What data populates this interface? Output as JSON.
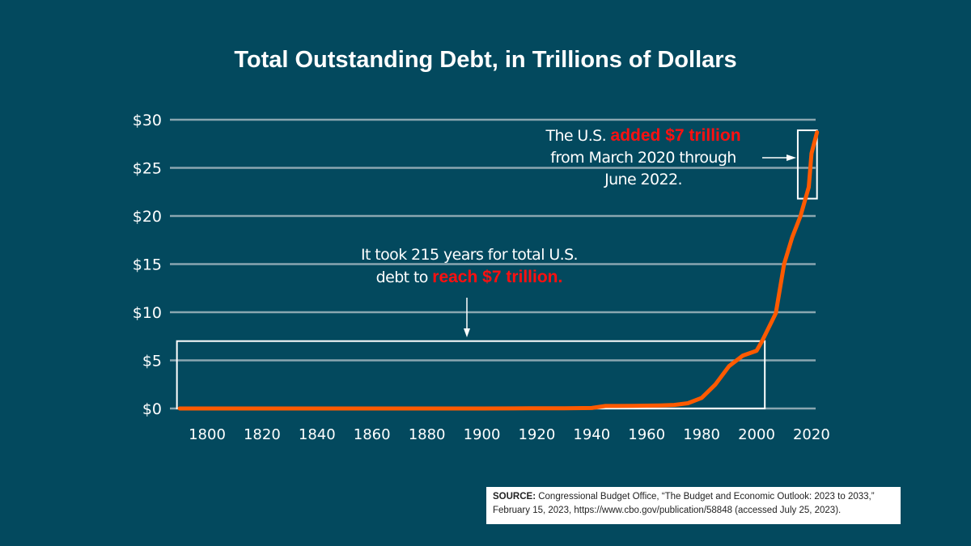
{
  "chart_data": {
    "type": "line",
    "title": "Total Outstanding Debt, in Trillions of Dollars",
    "xlabel": "",
    "ylabel": "",
    "xlim": [
      1790,
      2022
    ],
    "ylim": [
      0,
      30
    ],
    "grid": true,
    "x_ticks": [
      "1800",
      "1820",
      "1840",
      "1860",
      "1880",
      "1900",
      "1920",
      "1940",
      "1960",
      "1980",
      "2000",
      "2020"
    ],
    "y_ticks": [
      "$0",
      "$5",
      "$10",
      "$15",
      "$20",
      "$25",
      "$30"
    ],
    "series": [
      {
        "color": "#ff5a00",
        "x": [
          1790,
          1820,
          1860,
          1900,
          1917,
          1930,
          1940,
          1945,
          1955,
          1965,
          1970,
          1975,
          1980,
          1985,
          1990,
          1995,
          2000,
          2002,
          2007,
          2010,
          2013,
          2016,
          2019,
          2020,
          2022
        ],
        "y": [
          0,
          0,
          0,
          0,
          0.02,
          0.02,
          0.05,
          0.26,
          0.27,
          0.32,
          0.37,
          0.55,
          1.1,
          2.5,
          4.4,
          5.5,
          6.0,
          7.0,
          9.9,
          15.0,
          17.8,
          20.0,
          23.0,
          26.5,
          28.7
        ]
      }
    ],
    "annotations": {
      "early": {
        "text_before": "It took 215 years for total U.S.",
        "text_mid": "debt to ",
        "highlight": "reach $7 trillion.",
        "box_x": [
          1789,
          2003
        ],
        "box_y": [
          0,
          7
        ]
      },
      "recent": {
        "text_before": "The U.S. ",
        "highlight": "added $7 trillion",
        "line2": "from March 2020 through",
        "line3": "June 2022.",
        "box_x": [
          2015,
          2022
        ],
        "box_y": [
          21.8,
          28.9
        ]
      }
    }
  },
  "source": {
    "label": "SOURCE:",
    "text": " Congressional Budget Office, “The Budget and Economic Outlook: 2023 to 2033,” February 15, 2023, https://www.cbo.gov/publication/58848 (accessed July 25, 2023)."
  },
  "colors": {
    "background": "#03495e",
    "line": "#ff5a00",
    "highlight": "#ff1010",
    "grid": "#8aa6b0"
  }
}
